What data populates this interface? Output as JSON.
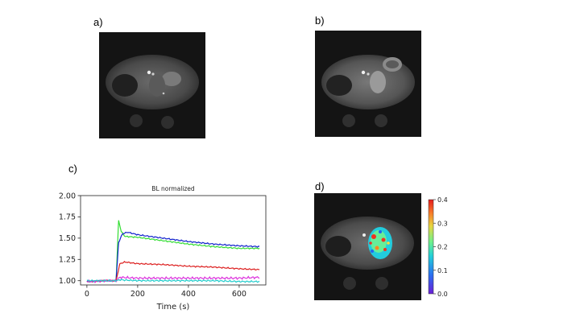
{
  "panels": {
    "a": {
      "label": "a)"
    },
    "b": {
      "label": "b)"
    },
    "c": {
      "label": "c)"
    },
    "d": {
      "label": "d)"
    }
  },
  "colors": {
    "green": "#33dd33",
    "blue": "#1122cc",
    "red": "#dd2222",
    "magenta": "#dd33dd",
    "cyan": "#22cccc",
    "background": "#ffffff"
  },
  "colorbar": {
    "ticks": [
      "0.0",
      "0.1",
      "0.2",
      "0.3",
      "0.4"
    ],
    "min": 0.0,
    "max": 0.4
  },
  "chart_data": {
    "type": "line",
    "title": "BL normalized",
    "xlabel": "Time (s)",
    "ylabel": "",
    "xlim": [
      -25,
      705
    ],
    "ylim": [
      0.95,
      2.0
    ],
    "xticks": [
      0,
      200,
      400,
      600
    ],
    "yticks": [
      1.0,
      1.25,
      1.5,
      1.75,
      2.0
    ],
    "ytick_labels": [
      "1.00",
      "1.25",
      "1.50",
      "1.75",
      "2.00"
    ],
    "series": [
      {
        "name": "green",
        "color": "#33dd33",
        "x": [
          0,
          60,
          115,
          125,
          135,
          150,
          200,
          300,
          400,
          500,
          600,
          680
        ],
        "y": [
          0.99,
          1.0,
          1.0,
          1.71,
          1.58,
          1.52,
          1.51,
          1.47,
          1.43,
          1.4,
          1.38,
          1.38
        ]
      },
      {
        "name": "blue",
        "color": "#1122cc",
        "x": [
          0,
          60,
          115,
          125,
          140,
          160,
          200,
          300,
          400,
          500,
          600,
          680
        ],
        "y": [
          0.99,
          1.0,
          1.0,
          1.45,
          1.55,
          1.57,
          1.54,
          1.5,
          1.46,
          1.43,
          1.41,
          1.4
        ]
      },
      {
        "name": "red",
        "color": "#dd2222",
        "x": [
          0,
          60,
          115,
          130,
          150,
          200,
          300,
          400,
          500,
          600,
          680
        ],
        "y": [
          0.99,
          1.0,
          1.0,
          1.2,
          1.22,
          1.2,
          1.19,
          1.17,
          1.16,
          1.14,
          1.13
        ]
      },
      {
        "name": "magenta",
        "color": "#dd33dd",
        "x": [
          0,
          100,
          115,
          130,
          200,
          300,
          400,
          500,
          600,
          680
        ],
        "y": [
          0.99,
          1.0,
          1.0,
          1.04,
          1.03,
          1.03,
          1.03,
          1.03,
          1.03,
          1.04
        ]
      },
      {
        "name": "cyan",
        "color": "#22cccc",
        "x": [
          0,
          100,
          115,
          130,
          200,
          300,
          400,
          500,
          600,
          680
        ],
        "y": [
          1.0,
          1.0,
          1.0,
          1.01,
          1.0,
          1.0,
          1.0,
          1.0,
          0.99,
          0.99
        ]
      }
    ]
  }
}
